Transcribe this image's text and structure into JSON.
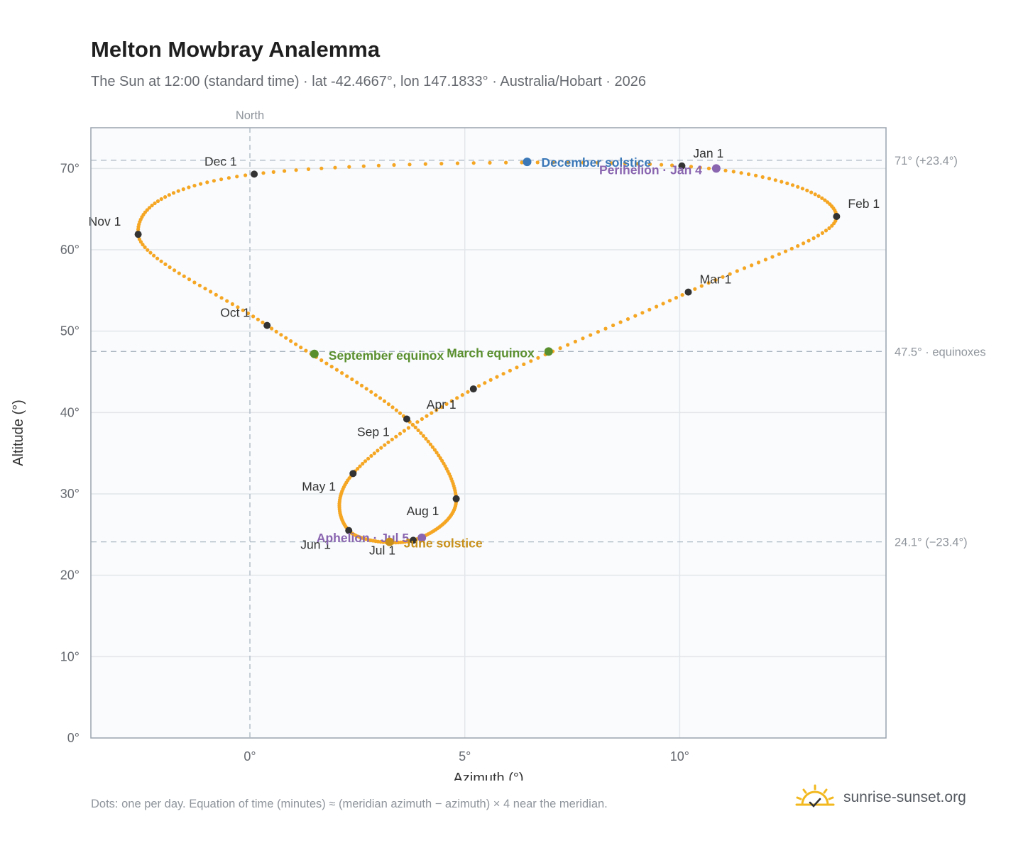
{
  "header": {
    "title": "Melton Mowbray Analemma",
    "subtitle": "The Sun at 12:00 (standard time) · lat -42.4667°, lon 147.1833° · Australia/Hobart · 2026"
  },
  "footer": {
    "note": "Dots: one per day. Equation of time (minutes) ≈ (meridian azimuth − azimuth) × 4 near the meridian.",
    "brand": "sunrise-sunset.org",
    "brand_icon": "sun-check-icon"
  },
  "colors": {
    "curve": "#f5a623",
    "month_marker": "#333333",
    "solstice_dec": "#3b78b8",
    "solstice_jun": "#c8901a",
    "equinox": "#5a8f2e",
    "apsis": "#8a65b0",
    "grid": "#e3e6ea",
    "reference_line": "#aab6c2",
    "plot_bg": "#f9fbfd",
    "frame": "#9aa3ae"
  },
  "chart_data": {
    "type": "scatter",
    "xlabel": "Azimuth (°)",
    "ylabel": "Altitude (°)",
    "xlim": [
      -3.7,
      14.8
    ],
    "ylim": [
      0,
      75
    ],
    "x_ticks": [
      {
        "value": 0,
        "label": "0°"
      },
      {
        "value": 5,
        "label": "5°"
      },
      {
        "value": 10,
        "label": "10°"
      }
    ],
    "y_ticks": [
      {
        "value": 0,
        "label": "0°"
      },
      {
        "value": 10,
        "label": "10°"
      },
      {
        "value": 20,
        "label": "20°"
      },
      {
        "value": 30,
        "label": "30°"
      },
      {
        "value": 40,
        "label": "40°"
      },
      {
        "value": 50,
        "label": "50°"
      },
      {
        "value": 60,
        "label": "60°"
      },
      {
        "value": 70,
        "label": "70°"
      }
    ],
    "grid": true,
    "meridian": {
      "value": 0,
      "label": "North"
    },
    "reference_lines": [
      {
        "value": 71.0,
        "label": "71° (+23.4°)"
      },
      {
        "value": 47.5,
        "label": "47.5° · equinoxes"
      },
      {
        "value": 24.1,
        "label": "24.1° (−23.4°)"
      }
    ],
    "months": [
      {
        "label": "Jan 1",
        "az": 10.05,
        "alt": 70.3
      },
      {
        "label": "Feb 1",
        "az": 13.65,
        "alt": 64.1
      },
      {
        "label": "Mar 1",
        "az": 10.2,
        "alt": 54.8
      },
      {
        "label": "Apr 1",
        "az": 5.2,
        "alt": 42.9
      },
      {
        "label": "May 1",
        "az": 2.4,
        "alt": 32.5
      },
      {
        "label": "Jun 1",
        "az": 2.3,
        "alt": 25.5
      },
      {
        "label": "Jul 1",
        "az": 3.8,
        "alt": 24.3
      },
      {
        "label": "Aug 1",
        "az": 4.8,
        "alt": 29.4
      },
      {
        "label": "Sep 1",
        "az": 3.65,
        "alt": 39.2
      },
      {
        "label": "Oct 1",
        "az": 0.4,
        "alt": 50.7
      },
      {
        "label": "Nov 1",
        "az": -2.6,
        "alt": 61.9
      },
      {
        "label": "Dec 1",
        "az": 0.1,
        "alt": 69.3
      }
    ],
    "events": [
      {
        "label": "December solstice",
        "az": 6.45,
        "alt": 70.8,
        "color": "#3b78b8"
      },
      {
        "label": "Perihelion · Jan 4",
        "az": 10.85,
        "alt": 70.0,
        "color": "#8a65b0"
      },
      {
        "label": "March equinox",
        "az": 6.95,
        "alt": 47.5,
        "color": "#5a8f2e"
      },
      {
        "label": "September equinox",
        "az": 1.5,
        "alt": 47.2,
        "color": "#5a8f2e"
      },
      {
        "label": "Aphelion · Jul 5",
        "az": 4.0,
        "alt": 24.6,
        "color": "#8a65b0"
      },
      {
        "label": "June solstice",
        "az": 3.25,
        "alt": 24.1,
        "color": "#c8901a"
      }
    ]
  }
}
